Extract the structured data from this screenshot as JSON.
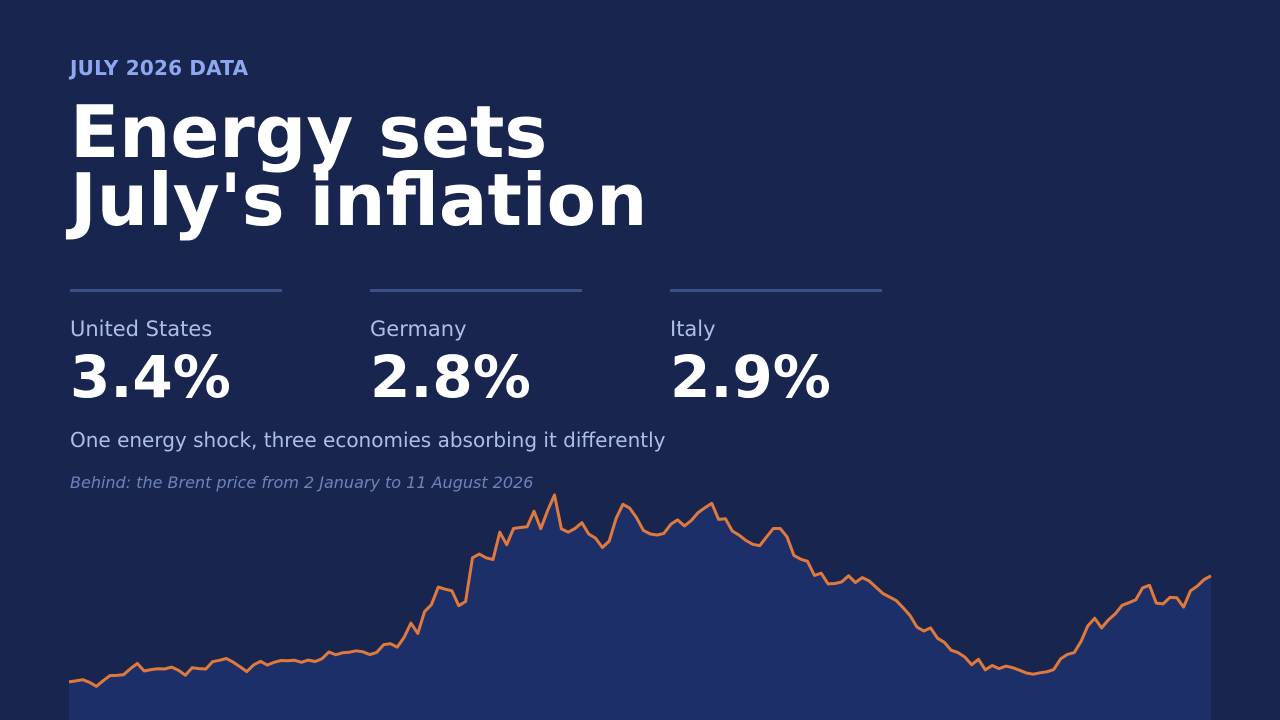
{
  "header": {
    "eyebrow": "JULY 2026 DATA",
    "headline_line1": "Energy sets",
    "headline_line2": "July's inflation"
  },
  "stats": [
    {
      "country": "United States",
      "value": "3.4%"
    },
    {
      "country": "Germany",
      "value": "2.8%"
    },
    {
      "country": "Italy",
      "value": "2.9%"
    }
  ],
  "subtitle": "One energy shock, three economies absorbing it differently",
  "caption": "Behind: the Brent price from 2 January to 11 August 2026",
  "colors": {
    "background": "#18254f",
    "line": "#e07a3c",
    "area_fill": "#1c2f68",
    "accent_text": "#8ea7f0"
  },
  "chart_data": {
    "type": "area",
    "title": "",
    "xlabel": "",
    "ylabel": "",
    "x_range": [
      "2026-01-02",
      "2026-08-11"
    ],
    "y_range": [
      0,
      100
    ],
    "grid": false,
    "series": [
      {
        "values": [
          5.6,
          6.1,
          6.7,
          5.4,
          3.4,
          6.2,
          8.8,
          8.9,
          9.3,
          12.3,
          14.9,
          11.1,
          11.8,
          12.2,
          12.1,
          13.1,
          11.5,
          9.0,
          12.8,
          12.3,
          12.1,
          15.8,
          16.5,
          17.4,
          15.6,
          13.3,
          10.8,
          14.2,
          16.0,
          14.1,
          15.5,
          16.4,
          16.3,
          16.5,
          15.5,
          16.6,
          15.9,
          17.3,
          20.7,
          19.3,
          20.3,
          20.6,
          21.3,
          20.8,
          19.4,
          20.5,
          24.4,
          24.9,
          23.2,
          28.1,
          35.3,
          30.1,
          41.1,
          44.6,
          53.5,
          52.4,
          51.6,
          44.1,
          46.2,
          68.3,
          70.2,
          68.3,
          67.4,
          81.2,
          74.9,
          83.1,
          83.6,
          84.0,
          91.8,
          83.0,
          92.2,
          100.0,
          82.9,
          81.2,
          83.1,
          86.0,
          80.3,
          78.2,
          73.5,
          76.7,
          88.2,
          95.3,
          93.4,
          88.5,
          82.1,
          80.3,
          79.8,
          80.6,
          85.2,
          87.4,
          84.4,
          87.1,
          91.1,
          93.6,
          95.8,
          87.7,
          88.0,
          81.8,
          79.7,
          77.0,
          75.1,
          74.4,
          78.8,
          83.1,
          83.1,
          78.9,
          69.5,
          67.6,
          66.5,
          59.4,
          60.5,
          55.1,
          55.3,
          56.1,
          59.2,
          55.8,
          58.3,
          56.6,
          53.5,
          50.3,
          48.5,
          46.6,
          43.0,
          39.1,
          33.3,
          31.3,
          32.9,
          27.7,
          25.6,
          21.6,
          20.4,
          18.2,
          14.3,
          17.0,
          11.7,
          13.9,
          12.3,
          13.6,
          12.8,
          11.5,
          10.1,
          9.5,
          10.2,
          10.7,
          11.8,
          17.2,
          19.5,
          20.4,
          26.1,
          34.0,
          37.8,
          32.9,
          36.9,
          40.0,
          44.3,
          45.6,
          47.1,
          53.1,
          54.4,
          45.4,
          45.0,
          48.3,
          48.1,
          43.4,
          51.6,
          54.0,
          57.3,
          59.2
        ]
      }
    ]
  }
}
